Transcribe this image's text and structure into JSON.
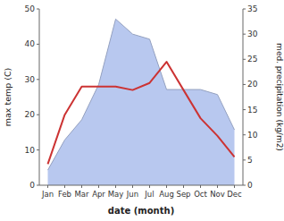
{
  "chart_data": {
    "type": "line",
    "xlabel": "date (month)",
    "ylabel": "max temp (C)",
    "y2label": "med. precipitation (kg/m2)",
    "categories": [
      "Jan",
      "Feb",
      "Mar",
      "Apr",
      "May",
      "Jun",
      "Jul",
      "Aug",
      "Sep",
      "Oct",
      "Nov",
      "Dec"
    ],
    "series": [
      {
        "type": "line",
        "color": "#cc3333",
        "values": [
          6,
          20,
          28,
          28,
          28,
          27,
          29,
          35,
          27,
          19,
          14,
          8
        ]
      },
      {
        "type": "area",
        "axis": "y2",
        "color": "#b8c8ef",
        "values": [
          3,
          9,
          13,
          20,
          33,
          30,
          29,
          19,
          19,
          19,
          18,
          11
        ]
      }
    ],
    "ylim": [
      0,
      50
    ],
    "yticks": [
      0,
      10,
      20,
      30,
      40,
      50
    ],
    "y2lim": [
      0,
      35
    ],
    "y2ticks": [
      0,
      5,
      10,
      15,
      20,
      25,
      30,
      35
    ],
    "grid": false
  }
}
